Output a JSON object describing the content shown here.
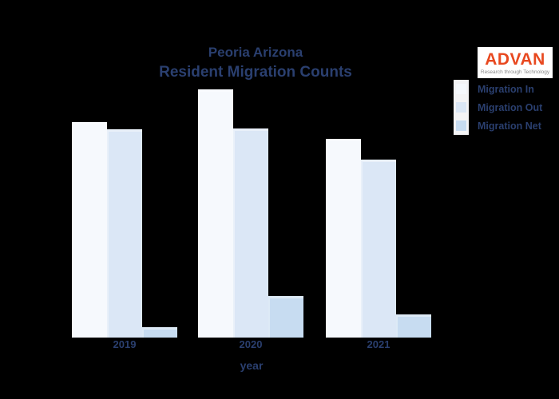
{
  "colors": {
    "background": "#000000",
    "text": "#2a3f6f",
    "brand_orange": "#e8481f",
    "tagline_gray": "#8a8a8a",
    "legend_strip": "#f4f4f6"
  },
  "title": {
    "line1": "Peoria Arizona",
    "line2": "Resident Migration Counts"
  },
  "brand": {
    "name": "ADVAN",
    "tagline": "Research through Technology"
  },
  "legend": {
    "items": [
      {
        "label": "Migration In",
        "color": "#f6f9fd"
      },
      {
        "label": "Migration Out",
        "color": "#dbe7f6"
      },
      {
        "label": "Migration Net",
        "color": "#c7dcf1"
      }
    ]
  },
  "x_axis": {
    "title": "year",
    "ticks": [
      "2019",
      "2020",
      "2021"
    ]
  },
  "chart_data": {
    "type": "bar",
    "title": "Peoria Arizona Resident Migration Counts",
    "categories": [
      "2019",
      "2020",
      "2021"
    ],
    "series": [
      {
        "name": "Migration In",
        "color": "#f6f9fd",
        "values": [
          270,
          311,
          249
        ]
      },
      {
        "name": "Migration Out",
        "color": "#dbe7f6",
        "values": [
          261,
          262,
          223
        ]
      },
      {
        "name": "Migration Net",
        "color": "#c7dcf1",
        "values": [
          13,
          52,
          29
        ]
      }
    ],
    "xlabel": "year",
    "ylabel": "",
    "ylim": [
      0,
      340
    ],
    "grid": false,
    "y_axis_labels_visible": false,
    "legend_position": "top-right",
    "units": "relative bar heights (no y-axis scale shown in image)"
  }
}
